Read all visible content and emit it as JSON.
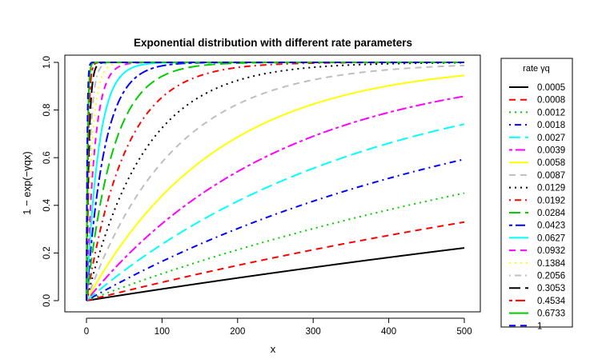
{
  "chart_data": {
    "type": "line",
    "title": "Exponential distribution with different rate parameters",
    "xlabel": "x",
    "ylabel": "1 − exp(−γqx)",
    "xlim": [
      0,
      500
    ],
    "ylim": [
      0,
      1
    ],
    "x_ticks": [
      "0",
      "100",
      "200",
      "300",
      "400",
      "500"
    ],
    "y_ticks": [
      "0.0",
      "0.2",
      "0.4",
      "0.6",
      "0.8",
      "1.0"
    ],
    "function": "1 - exp(-rate * x)",
    "grid": false,
    "legend": {
      "title": "rate γq",
      "placement": "right"
    },
    "series": [
      {
        "name": "0.0005",
        "rate": 0.0005,
        "color": "#000000",
        "lty": "solid"
      },
      {
        "name": "0.0008",
        "rate": 0.0008,
        "color": "#ff0000",
        "lty": "dashed"
      },
      {
        "name": "0.0012",
        "rate": 0.0012,
        "color": "#00cd00",
        "lty": "dotted"
      },
      {
        "name": "0.0018",
        "rate": 0.0018,
        "color": "#0000ff",
        "lty": "dotdash"
      },
      {
        "name": "0.0027",
        "rate": 0.0027,
        "color": "#00ffff",
        "lty": "longdash"
      },
      {
        "name": "0.0039",
        "rate": 0.0039,
        "color": "#ff00ff",
        "lty": "twodash"
      },
      {
        "name": "0.0058",
        "rate": 0.0058,
        "color": "#ffff00",
        "lty": "solid"
      },
      {
        "name": "0.0087",
        "rate": 0.0087,
        "color": "#bebebe",
        "lty": "dashed"
      },
      {
        "name": "0.0129",
        "rate": 0.0129,
        "color": "#000000",
        "lty": "dotted"
      },
      {
        "name": "0.0192",
        "rate": 0.0192,
        "color": "#ff0000",
        "lty": "dotdash"
      },
      {
        "name": "0.0284",
        "rate": 0.0284,
        "color": "#00cd00",
        "lty": "longdash"
      },
      {
        "name": "0.0423",
        "rate": 0.0423,
        "color": "#0000ff",
        "lty": "twodash"
      },
      {
        "name": "0.0627",
        "rate": 0.0627,
        "color": "#00ffff",
        "lty": "solid"
      },
      {
        "name": "0.0932",
        "rate": 0.0932,
        "color": "#ff00ff",
        "lty": "dashed"
      },
      {
        "name": "0.1384",
        "rate": 0.1384,
        "color": "#ffff00",
        "lty": "dotted"
      },
      {
        "name": "0.2056",
        "rate": 0.2056,
        "color": "#bebebe",
        "lty": "dotdash"
      },
      {
        "name": "0.3053",
        "rate": 0.3053,
        "color": "#000000",
        "lty": "longdash"
      },
      {
        "name": "0.4534",
        "rate": 0.4534,
        "color": "#ff0000",
        "lty": "twodash"
      },
      {
        "name": "0.6733",
        "rate": 0.6733,
        "color": "#00cd00",
        "lty": "solid"
      },
      {
        "name": "1",
        "rate": 1,
        "color": "#0000ff",
        "lty": "dashed"
      }
    ]
  }
}
